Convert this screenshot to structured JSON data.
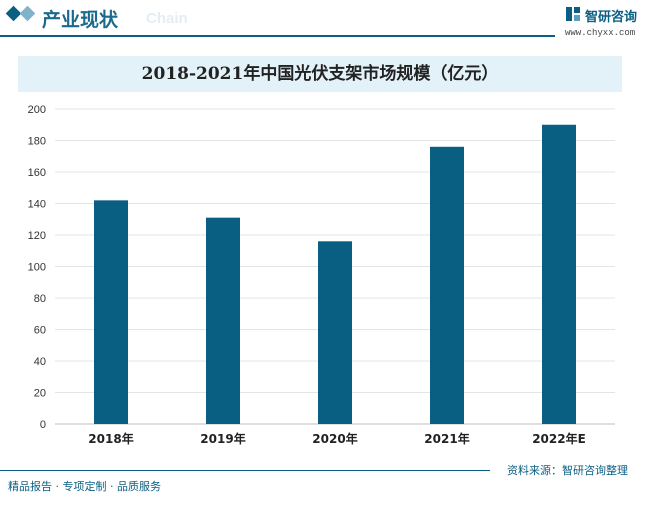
{
  "header": {
    "section_title": "产业现状",
    "section_sub": "Chain",
    "logo_name": "智研咨询",
    "logo_url": "www.chyxx.com"
  },
  "footer": {
    "source": "资料来源：智研咨询整理",
    "slogan": "精品报告 · 专项定制 · 品质服务"
  },
  "colors": {
    "bar": "#085f82",
    "accent": "#0a5f82",
    "title_band": "#e3f1f8"
  },
  "chart_data": {
    "type": "bar",
    "title": "2018-2021年中国光伏支架市场规模（亿元）",
    "categories": [
      "2018年",
      "2019年",
      "2020年",
      "2021年",
      "2022年E"
    ],
    "values": [
      142,
      131,
      116,
      176,
      190
    ],
    "ylim": [
      0,
      200
    ],
    "yticks": [
      0,
      20,
      40,
      60,
      80,
      100,
      120,
      140,
      160,
      180,
      200
    ],
    "xlabel": "",
    "ylabel": "",
    "grid": true,
    "legend": "none"
  }
}
